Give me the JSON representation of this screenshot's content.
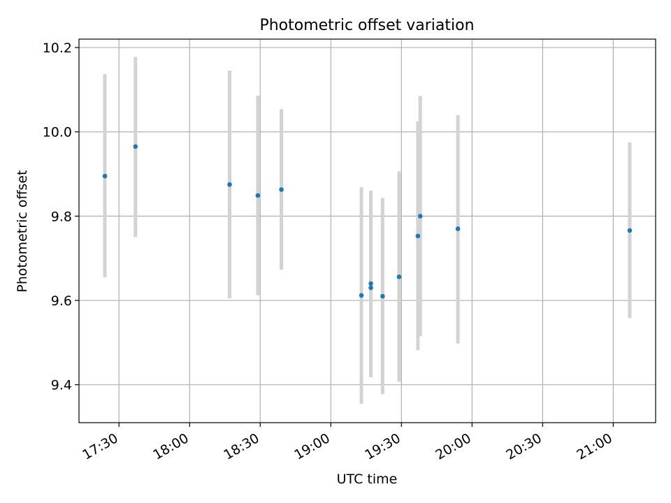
{
  "chart_data": {
    "type": "scatter",
    "title": "Photometric offset variation",
    "xlabel": "UTC time",
    "ylabel": "Photometric offset",
    "xlim": [
      "17:13",
      "21:18"
    ],
    "ylim": [
      9.31,
      10.22
    ],
    "grid": true,
    "x_ticks": [
      "17:30",
      "18:00",
      "18:30",
      "19:00",
      "19:30",
      "20:00",
      "20:30",
      "21:00"
    ],
    "y_ticks": [
      "9.4",
      "9.6",
      "9.8",
      "10.0",
      "10.2"
    ],
    "series": [
      {
        "marker_color": "#1f77b4",
        "errorbar_color": "#d3d3d3",
        "points": [
          {
            "x": "17:24",
            "y": 9.895,
            "ylow": 9.655,
            "yhigh": 10.137
          },
          {
            "x": "17:37",
            "y": 9.965,
            "ylow": 9.75,
            "yhigh": 10.178
          },
          {
            "x": "18:17",
            "y": 9.875,
            "ylow": 9.605,
            "yhigh": 10.145
          },
          {
            "x": "18:29",
            "y": 9.849,
            "ylow": 9.612,
            "yhigh": 10.086
          },
          {
            "x": "18:39",
            "y": 9.863,
            "ylow": 9.673,
            "yhigh": 10.054
          },
          {
            "x": "19:13",
            "y": 9.612,
            "ylow": 9.355,
            "yhigh": 9.869
          },
          {
            "x": "19:17",
            "y": 9.63,
            "ylow": 9.418,
            "yhigh": 9.86
          },
          {
            "x": "19:17",
            "y": 9.64,
            "ylow": 9.418,
            "yhigh": 9.86
          },
          {
            "x": "19:22",
            "y": 9.61,
            "ylow": 9.378,
            "yhigh": 9.843
          },
          {
            "x": "19:29",
            "y": 9.656,
            "ylow": 9.407,
            "yhigh": 9.906
          },
          {
            "x": "19:37",
            "y": 9.753,
            "ylow": 9.482,
            "yhigh": 10.025
          },
          {
            "x": "19:38",
            "y": 9.8,
            "ylow": 9.515,
            "yhigh": 10.085
          },
          {
            "x": "19:54",
            "y": 9.77,
            "ylow": 9.498,
            "yhigh": 10.04
          },
          {
            "x": "21:07",
            "y": 9.766,
            "ylow": 9.558,
            "yhigh": 9.975
          }
        ]
      }
    ]
  }
}
